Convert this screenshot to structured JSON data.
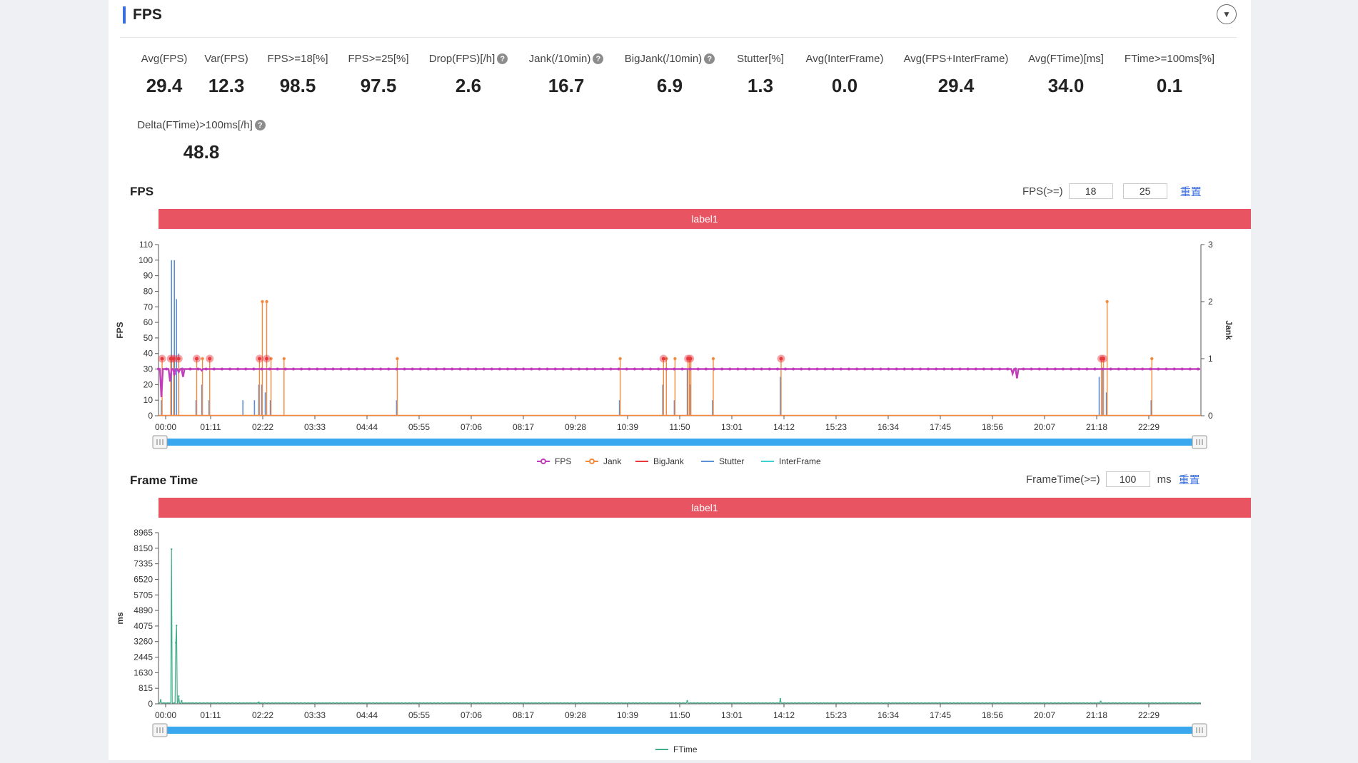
{
  "section": {
    "title": "FPS"
  },
  "metrics_row1": [
    {
      "label": "Avg(FPS)",
      "value": "29.4",
      "help": false
    },
    {
      "label": "Var(FPS)",
      "value": "12.3",
      "help": false
    },
    {
      "label": "FPS>=18[%]",
      "value": "98.5",
      "help": false
    },
    {
      "label": "FPS>=25[%]",
      "value": "97.5",
      "help": false
    },
    {
      "label": "Drop(FPS)[/h]",
      "value": "2.6",
      "help": true
    },
    {
      "label": "Jank(/10min)",
      "value": "16.7",
      "help": true
    },
    {
      "label": "BigJank(/10min)",
      "value": "6.9",
      "help": true
    },
    {
      "label": "Stutter[%]",
      "value": "1.3",
      "help": false
    },
    {
      "label": "Avg(InterFrame)",
      "value": "0.0",
      "help": false
    },
    {
      "label": "Avg(FPS+InterFrame)",
      "value": "29.4",
      "help": false
    },
    {
      "label": "Avg(FTime)[ms]",
      "value": "34.0",
      "help": false
    },
    {
      "label": "FTime>=100ms[%]",
      "value": "0.1",
      "help": false
    }
  ],
  "metrics_row2": [
    {
      "label": "Delta(FTime)>100ms[/h]",
      "value": "48.8",
      "help": true
    }
  ],
  "fps_chart": {
    "title": "FPS",
    "control_label": "FPS(>=)",
    "threshold1": "18",
    "threshold2": "25",
    "reset_label": "重置",
    "strip_label": "label1",
    "y_left_label": "FPS",
    "y_right_label": "Jank"
  },
  "ft_chart": {
    "title": "Frame Time",
    "control_label": "FrameTime(>=)",
    "threshold": "100",
    "unit": "ms",
    "reset_label": "重置",
    "strip_label": "label1",
    "y_label": "ms"
  },
  "colors": {
    "fps": "#c23dbb",
    "jank": "#f58a3c",
    "bigjank": "#e8383d",
    "stutter": "#5b8fd6",
    "interframe": "#3dd1d1",
    "ftime": "#3fae8a",
    "slider": "#3aa8ee",
    "strip": "#e95463"
  },
  "chart_data": [
    {
      "type": "line",
      "title": "FPS",
      "x_ticks": [
        "00:00",
        "01:11",
        "02:22",
        "03:33",
        "04:44",
        "05:55",
        "07:06",
        "08:17",
        "09:28",
        "10:39",
        "11:50",
        "13:01",
        "14:12",
        "15:23",
        "16:34",
        "17:45",
        "18:56",
        "20:07",
        "21:18",
        "22:29"
      ],
      "x_range_min": [
        0,
        1445
      ],
      "ylabel": "FPS",
      "ylabel_right": "Jank",
      "y_ticks": [
        0,
        10,
        20,
        30,
        40,
        50,
        60,
        70,
        80,
        90,
        100,
        110
      ],
      "ylim": [
        0,
        110
      ],
      "y_right_ticks": [
        0,
        1,
        2,
        3
      ],
      "y_right_lim": [
        0,
        3
      ],
      "legend": [
        "FPS",
        "Jank",
        "BigJank",
        "Stutter",
        "InterFrame"
      ],
      "legend_position": "bottom",
      "series": [
        {
          "name": "FPS",
          "baseline": 30,
          "dips": [
            [
              4,
              12
            ],
            [
              16,
              22
            ],
            [
              22,
              27
            ],
            [
              28,
              28
            ],
            [
              35,
              25
            ],
            [
              60,
              29
            ],
            [
              1185,
              27
            ],
            [
              1190,
              24
            ]
          ]
        },
        {
          "name": "Jank",
          "spikes_min": [
            [
              4,
              1
            ],
            [
              16,
              1
            ],
            [
              20,
              1
            ],
            [
              27,
              1
            ],
            [
              52,
              1
            ],
            [
              60,
              1
            ],
            [
              70,
              1
            ],
            [
              139,
              1
            ],
            [
              143,
              2
            ],
            [
              149,
              2
            ],
            [
              155,
              1
            ],
            [
              173,
              1
            ],
            [
              330,
              1
            ],
            [
              639,
              1
            ],
            [
              699,
              1
            ],
            [
              703,
              1
            ],
            [
              715,
              1
            ],
            [
              733,
              1
            ],
            [
              735,
              1
            ],
            [
              737,
              1
            ],
            [
              768,
              1
            ],
            [
              862,
              1
            ],
            [
              1306,
              1
            ],
            [
              1309,
              1
            ],
            [
              1314,
              2
            ],
            [
              1376,
              1
            ]
          ]
        },
        {
          "name": "BigJank",
          "spikes_min": [
            [
              4,
              1
            ],
            [
              16,
              1
            ],
            [
              20,
              1
            ],
            [
              27,
              1
            ],
            [
              52,
              1
            ],
            [
              70,
              1
            ],
            [
              139,
              1
            ],
            [
              149,
              1
            ],
            [
              699,
              1
            ],
            [
              733,
              1
            ],
            [
              736,
              1
            ],
            [
              862,
              1
            ],
            [
              1306,
              1
            ],
            [
              1309,
              1
            ]
          ]
        },
        {
          "name": "Stutter",
          "spikes_min": [
            [
              4,
              10
            ],
            [
              18,
              100
            ],
            [
              22,
              100
            ],
            [
              25,
              75
            ],
            [
              28,
              40
            ],
            [
              52,
              10
            ],
            [
              60,
              20
            ],
            [
              70,
              10
            ],
            [
              117,
              10
            ],
            [
              133,
              10
            ],
            [
              139,
              20
            ],
            [
              143,
              20
            ],
            [
              148,
              15
            ],
            [
              155,
              10
            ],
            [
              330,
              10
            ],
            [
              639,
              10
            ],
            [
              699,
              20
            ],
            [
              715,
              10
            ],
            [
              733,
              30
            ],
            [
              737,
              20
            ],
            [
              768,
              10
            ],
            [
              862,
              25
            ],
            [
              1304,
              25
            ],
            [
              1309,
              30
            ],
            [
              1314,
              15
            ],
            [
              1376,
              10
            ]
          ]
        },
        {
          "name": "InterFrame",
          "values": [
            0
          ]
        }
      ]
    },
    {
      "type": "line",
      "title": "Frame Time",
      "x_ticks": [
        "00:00",
        "01:11",
        "02:22",
        "03:33",
        "04:44",
        "05:55",
        "07:06",
        "08:17",
        "09:28",
        "10:39",
        "11:50",
        "13:01",
        "14:12",
        "15:23",
        "16:34",
        "17:45",
        "18:56",
        "20:07",
        "21:18",
        "22:29"
      ],
      "x_range_min": [
        0,
        1445
      ],
      "ylabel": "ms",
      "y_ticks": [
        0,
        815,
        1630,
        2445,
        3260,
        4075,
        4890,
        5705,
        6520,
        7335,
        8150,
        8965
      ],
      "ylim": [
        0,
        8965
      ],
      "legend": [
        "FTime"
      ],
      "legend_position": "bottom",
      "series": [
        {
          "name": "FTime",
          "baseline": 34,
          "spikes_min": [
            [
              3,
              200
            ],
            [
              18,
              8100
            ],
            [
              24,
              3200
            ],
            [
              25,
              4100
            ],
            [
              28,
              400
            ],
            [
              32,
              150
            ],
            [
              139,
              80
            ],
            [
              733,
              150
            ],
            [
              862,
              260
            ],
            [
              1306,
              120
            ]
          ]
        }
      ]
    }
  ]
}
